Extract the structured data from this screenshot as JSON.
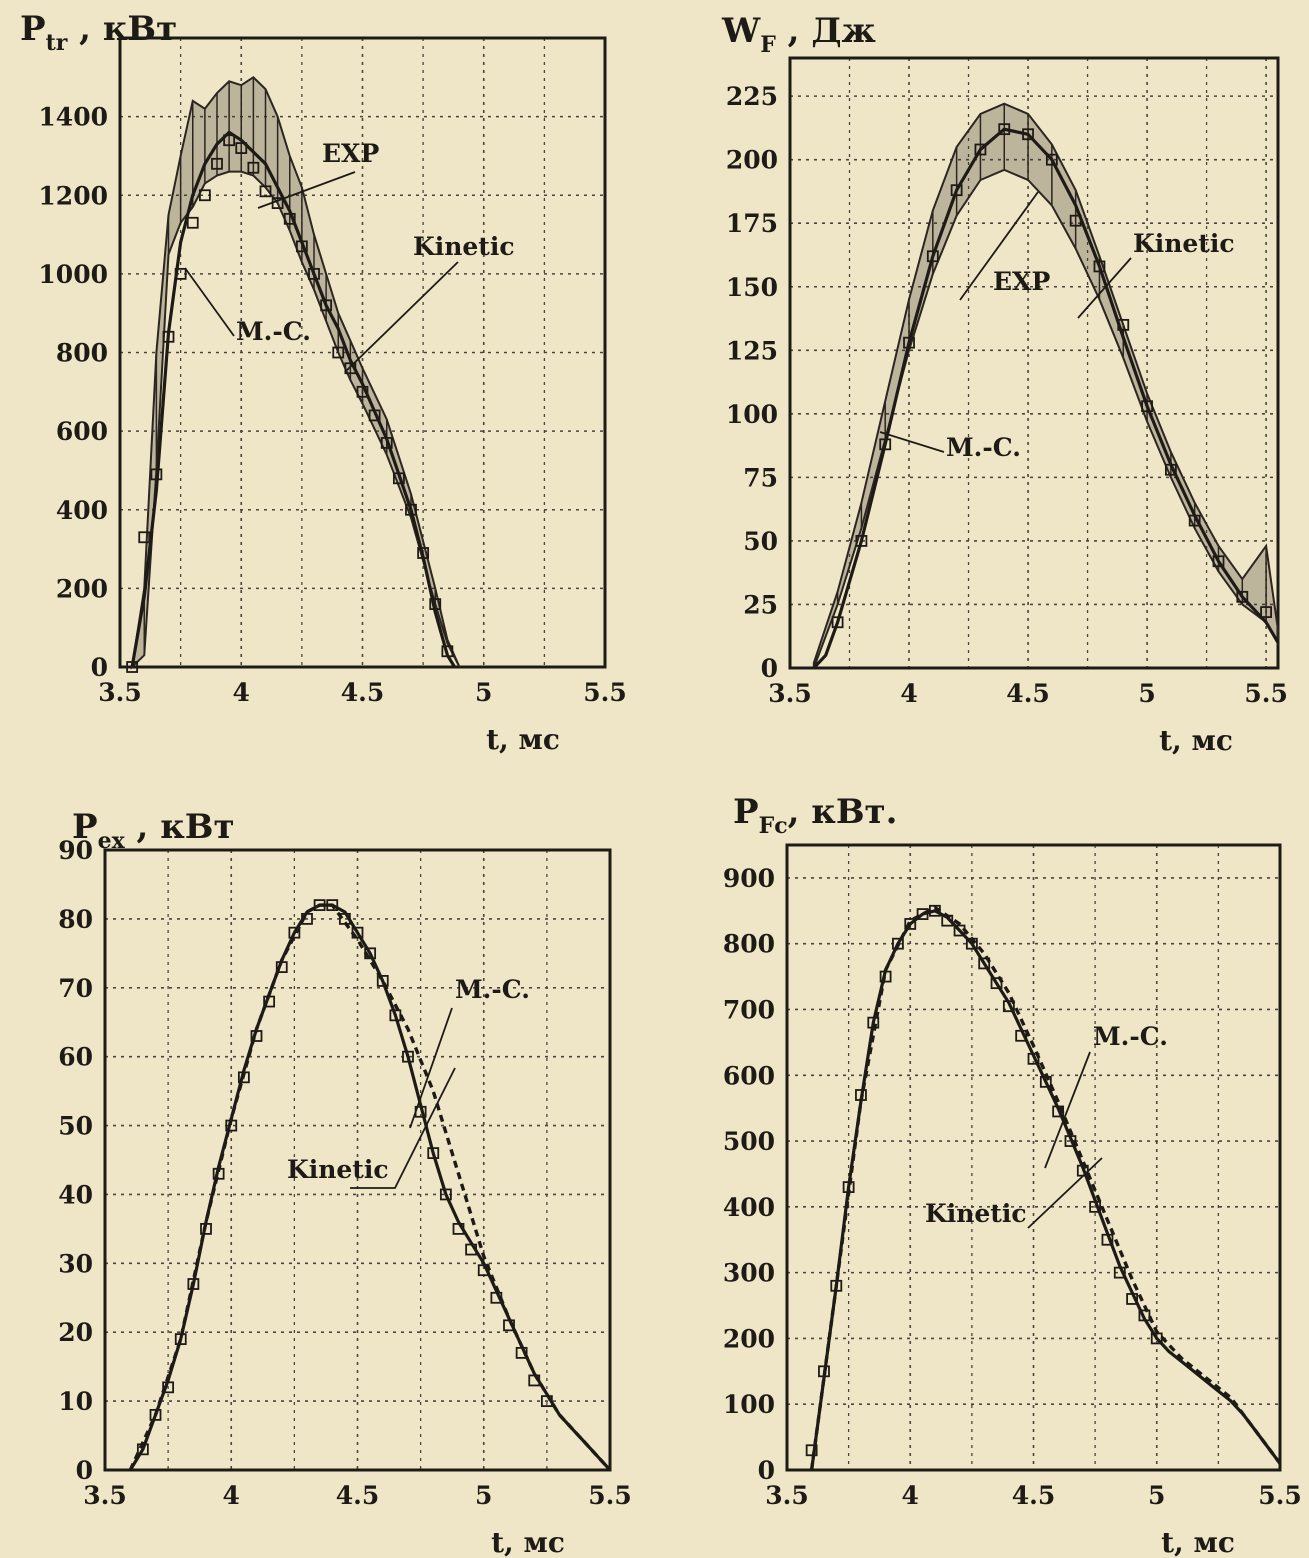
{
  "colors": {
    "paper": "#efe6c8",
    "ink": "#1e1a16",
    "grid": "#4a443c",
    "band": "#2b2620"
  },
  "chart_data": [
    {
      "type": "line",
      "ylabel_main": "P",
      "ylabel_sub": "tr",
      "ylabel_unit": " , кВт",
      "xlabel": "t, мс",
      "xlim": [
        3.5,
        5.5
      ],
      "ylim": [
        0,
        1600
      ],
      "xticks": [
        "3.5",
        "4",
        "4.5",
        "5",
        "5.5"
      ],
      "yticks": [
        "0",
        "200",
        "400",
        "600",
        "800",
        "1000",
        "1200",
        "1400"
      ],
      "grid": true,
      "series": [
        {
          "name": "EXP",
          "style": "band",
          "x": [
            3.55,
            3.6,
            3.65,
            3.7,
            3.75,
            3.8,
            3.85,
            3.9,
            3.95,
            4.0,
            4.05,
            4.1,
            4.15,
            4.2,
            4.25,
            4.3,
            4.35,
            4.4,
            4.45,
            4.5,
            4.6,
            4.7,
            4.8,
            4.85,
            4.9
          ],
          "lower": [
            0,
            30,
            500,
            1050,
            1130,
            1170,
            1230,
            1250,
            1260,
            1260,
            1250,
            1220,
            1180,
            1110,
            1030,
            960,
            880,
            800,
            730,
            670,
            540,
            380,
            160,
            60,
            0
          ],
          "upper": [
            0,
            200,
            800,
            1150,
            1300,
            1440,
            1420,
            1460,
            1490,
            1480,
            1500,
            1470,
            1400,
            1300,
            1220,
            1100,
            1000,
            900,
            830,
            760,
            630,
            440,
            200,
            70,
            0
          ]
        },
        {
          "name": "Kinetic",
          "style": "solid",
          "x": [
            3.55,
            3.6,
            3.65,
            3.7,
            3.75,
            3.8,
            3.85,
            3.9,
            3.95,
            4.0,
            4.05,
            4.1,
            4.15,
            4.2,
            4.25,
            4.3,
            4.35,
            4.4,
            4.45,
            4.5,
            4.55,
            4.6,
            4.65,
            4.7,
            4.75,
            4.8,
            4.85,
            4.88
          ],
          "y": [
            0,
            180,
            450,
            850,
            1080,
            1200,
            1280,
            1330,
            1360,
            1340,
            1310,
            1280,
            1220,
            1160,
            1080,
            1000,
            920,
            860,
            780,
            720,
            650,
            580,
            490,
            400,
            280,
            140,
            30,
            0
          ]
        },
        {
          "name": "M.-C.",
          "style": "markers",
          "marker": "square",
          "x": [
            3.55,
            3.6,
            3.65,
            3.7,
            3.75,
            3.8,
            3.85,
            3.9,
            3.95,
            4.0,
            4.05,
            4.1,
            4.15,
            4.2,
            4.25,
            4.3,
            4.35,
            4.4,
            4.45,
            4.5,
            4.55,
            4.6,
            4.65,
            4.7,
            4.75,
            4.8,
            4.85
          ],
          "y": [
            0,
            330,
            490,
            840,
            1000,
            1130,
            1200,
            1280,
            1340,
            1320,
            1270,
            1210,
            1180,
            1140,
            1070,
            1000,
            920,
            800,
            760,
            700,
            640,
            570,
            480,
            400,
            290,
            160,
            40
          ]
        }
      ],
      "annotations": [
        "EXP",
        "Kinetic",
        "M.-C."
      ]
    },
    {
      "type": "line",
      "ylabel_main": "W",
      "ylabel_sub": "F",
      "ylabel_unit": " , Дж",
      "xlabel": "t, мс",
      "xlim": [
        3.5,
        5.55
      ],
      "ylim": [
        0,
        240
      ],
      "xticks": [
        "3.5",
        "4",
        "4.5",
        "5",
        "5.5"
      ],
      "yticks": [
        "0",
        "25",
        "50",
        "75",
        "100",
        "125",
        "150",
        "175",
        "200",
        "225"
      ],
      "grid": true,
      "series": [
        {
          "name": "EXP",
          "style": "band",
          "x": [
            3.6,
            3.7,
            3.8,
            3.9,
            4.0,
            4.1,
            4.2,
            4.3,
            4.4,
            4.5,
            4.6,
            4.7,
            4.8,
            4.9,
            5.0,
            5.1,
            5.2,
            5.3,
            5.4,
            5.5,
            5.55
          ],
          "lower": [
            0,
            25,
            55,
            90,
            125,
            155,
            178,
            192,
            196,
            192,
            182,
            165,
            145,
            122,
            97,
            75,
            55,
            38,
            25,
            18,
            10
          ],
          "upper": [
            2,
            30,
            65,
            105,
            145,
            180,
            205,
            218,
            222,
            218,
            206,
            188,
            162,
            135,
            108,
            85,
            65,
            48,
            35,
            48,
            15
          ]
        },
        {
          "name": "Kinetic",
          "style": "solid",
          "x": [
            3.6,
            3.65,
            3.7,
            3.8,
            3.9,
            4.0,
            4.1,
            4.2,
            4.3,
            4.4,
            4.5,
            4.6,
            4.7,
            4.8,
            4.9,
            5.0,
            5.1,
            5.2,
            5.3,
            5.4,
            5.5,
            5.55
          ],
          "y": [
            0,
            5,
            18,
            50,
            88,
            128,
            162,
            188,
            204,
            212,
            210,
            200,
            182,
            158,
            130,
            103,
            80,
            60,
            42,
            28,
            18,
            10
          ]
        },
        {
          "name": "M.-C.",
          "style": "markers",
          "marker": "square",
          "x": [
            3.7,
            3.8,
            3.9,
            4.0,
            4.1,
            4.2,
            4.3,
            4.4,
            4.5,
            4.6,
            4.7,
            4.8,
            4.9,
            5.0,
            5.1,
            5.2,
            5.3,
            5.4,
            5.5
          ],
          "y": [
            18,
            50,
            88,
            128,
            162,
            188,
            204,
            212,
            210,
            200,
            176,
            158,
            135,
            103,
            78,
            58,
            42,
            28,
            22
          ]
        }
      ],
      "annotations": [
        "EXP",
        "Kinetic",
        "M.-C."
      ]
    },
    {
      "type": "line",
      "ylabel_main": "P",
      "ylabel_sub": "ex",
      "ylabel_unit": " , кВт",
      "xlabel": "t, мс",
      "xlim": [
        3.5,
        5.5
      ],
      "ylim": [
        0,
        90
      ],
      "xticks": [
        "3.5",
        "4",
        "4.5",
        "5",
        "5.5"
      ],
      "yticks": [
        "0",
        "10",
        "20",
        "30",
        "40",
        "50",
        "60",
        "70",
        "80",
        "90"
      ],
      "grid": true,
      "series": [
        {
          "name": "Kinetic",
          "style": "solid",
          "x": [
            3.6,
            3.65,
            3.7,
            3.75,
            3.8,
            3.85,
            3.9,
            3.95,
            4.0,
            4.05,
            4.1,
            4.15,
            4.2,
            4.25,
            4.3,
            4.35,
            4.4,
            4.45,
            4.5,
            4.55,
            4.6,
            4.65,
            4.7,
            4.75,
            4.8,
            4.85,
            4.9,
            4.95,
            5.0,
            5.05,
            5.1,
            5.15,
            5.2,
            5.25,
            5.3,
            5.35,
            5.4,
            5.45,
            5.5
          ],
          "y": [
            0,
            3,
            8,
            13,
            19,
            27,
            36,
            44,
            51,
            58,
            64,
            69,
            74,
            78,
            81,
            82,
            82,
            81,
            78,
            75,
            71,
            66,
            60,
            53,
            46,
            40,
            36,
            33,
            30,
            26,
            22,
            18,
            14,
            11,
            8,
            6,
            4,
            2,
            0
          ]
        },
        {
          "name": "M.-C.",
          "style": "dashed",
          "x": [
            3.6,
            3.7,
            3.8,
            3.9,
            4.0,
            4.1,
            4.2,
            4.3,
            4.35,
            4.4,
            4.5,
            4.6,
            4.7,
            4.8,
            4.9,
            5.0,
            5.1,
            5.2,
            5.3,
            5.4,
            5.5
          ],
          "y": [
            0,
            8,
            19,
            36,
            51,
            64,
            74,
            81,
            82,
            82,
            77,
            71,
            64,
            55,
            43,
            31,
            22,
            14,
            8,
            4,
            0
          ]
        },
        {
          "name": "Kinetic markers",
          "style": "markers",
          "marker": "square",
          "x": [
            3.65,
            3.7,
            3.75,
            3.8,
            3.85,
            3.9,
            3.95,
            4.0,
            4.05,
            4.1,
            4.15,
            4.2,
            4.25,
            4.3,
            4.35,
            4.4,
            4.45,
            4.5,
            4.55,
            4.6,
            4.65,
            4.7,
            4.75,
            4.8,
            4.85,
            4.9,
            4.95,
            5.0,
            5.05,
            5.1,
            5.15,
            5.2,
            5.25
          ],
          "y": [
            3,
            8,
            12,
            19,
            27,
            35,
            43,
            50,
            57,
            63,
            68,
            73,
            78,
            80,
            82,
            82,
            80,
            78,
            75,
            71,
            66,
            60,
            52,
            46,
            40,
            35,
            32,
            29,
            25,
            21,
            17,
            13,
            10
          ]
        }
      ],
      "annotations": [
        "M.-C.",
        "Kinetic"
      ]
    },
    {
      "type": "line",
      "ylabel_main": "P",
      "ylabel_sub": "Fc",
      "ylabel_unit": ", кВт.",
      "xlabel": "t, мс",
      "xlim": [
        3.5,
        5.5
      ],
      "ylim": [
        0,
        950
      ],
      "xticks": [
        "3.5",
        "4",
        "4.5",
        "5",
        "5.5"
      ],
      "yticks": [
        "0",
        "100",
        "200",
        "300",
        "400",
        "500",
        "600",
        "700",
        "800",
        "900"
      ],
      "grid": true,
      "series": [
        {
          "name": "Kinetic",
          "style": "solid",
          "x": [
            3.6,
            3.65,
            3.7,
            3.75,
            3.8,
            3.85,
            3.9,
            3.95,
            4.0,
            4.05,
            4.1,
            4.15,
            4.2,
            4.25,
            4.3,
            4.35,
            4.4,
            4.45,
            4.5,
            4.55,
            4.6,
            4.65,
            4.7,
            4.75,
            4.8,
            4.85,
            4.9,
            4.95,
            5.0,
            5.05,
            5.1,
            5.15,
            5.2,
            5.25,
            5.3,
            5.35,
            5.4,
            5.45,
            5.5
          ],
          "y": [
            0,
            140,
            280,
            430,
            560,
            680,
            760,
            800,
            830,
            845,
            850,
            840,
            820,
            800,
            770,
            740,
            710,
            670,
            630,
            590,
            550,
            505,
            460,
            410,
            360,
            310,
            270,
            230,
            200,
            180,
            165,
            150,
            135,
            120,
            105,
            85,
            60,
            35,
            10
          ]
        },
        {
          "name": "M.-C.",
          "style": "dashed",
          "x": [
            3.6,
            3.7,
            3.8,
            3.9,
            4.0,
            4.1,
            4.2,
            4.3,
            4.4,
            4.5,
            4.6,
            4.7,
            4.8,
            4.9,
            5.0,
            5.1,
            5.2,
            5.3,
            5.4,
            5.5
          ],
          "y": [
            0,
            280,
            560,
            760,
            835,
            855,
            830,
            785,
            725,
            645,
            560,
            470,
            380,
            290,
            210,
            170,
            140,
            110,
            60,
            10
          ]
        },
        {
          "name": "Kinetic markers",
          "style": "markers",
          "marker": "square",
          "x": [
            3.6,
            3.65,
            3.7,
            3.75,
            3.8,
            3.85,
            3.9,
            3.95,
            4.0,
            4.05,
            4.1,
            4.15,
            4.2,
            4.25,
            4.3,
            4.35,
            4.4,
            4.45,
            4.5,
            4.55,
            4.6,
            4.65,
            4.7,
            4.75,
            4.8,
            4.85,
            4.9,
            4.95,
            5.0
          ],
          "y": [
            30,
            150,
            280,
            430,
            570,
            680,
            750,
            800,
            830,
            845,
            850,
            835,
            820,
            800,
            770,
            740,
            705,
            660,
            625,
            590,
            545,
            500,
            455,
            400,
            350,
            300,
            260,
            235,
            200
          ]
        }
      ],
      "annotations": [
        "M.-C.",
        "Kinetic"
      ]
    }
  ]
}
